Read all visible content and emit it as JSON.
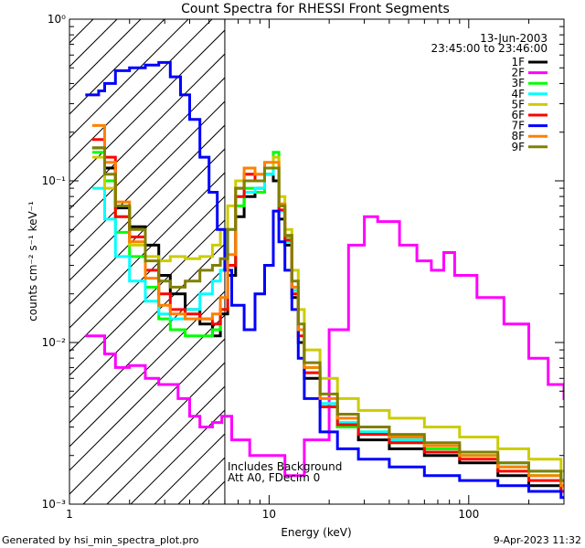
{
  "chart_data": {
    "type": "line",
    "title": "Count Spectra for RHESSI Front Segments",
    "xlabel": "Energy (keV)",
    "ylabel": "counts cm⁻² s⁻¹ keV⁻¹",
    "x_scale": "log",
    "y_scale": "log",
    "xlim": [
      1,
      300
    ],
    "ylim": [
      0.001,
      1
    ],
    "x_ticks": [
      {
        "value": 1,
        "label": "1"
      },
      {
        "value": 10,
        "label": "10"
      },
      {
        "value": 100,
        "label": "100"
      }
    ],
    "y_ticks": [
      {
        "value": 0.001,
        "label": "10⁻³"
      },
      {
        "value": 0.01,
        "label": "10⁻²"
      },
      {
        "value": 0.1,
        "label": "10⁻¹"
      },
      {
        "value": 1,
        "label": "10⁰"
      }
    ],
    "hatched_region": [
      1,
      6
    ],
    "date": "13-Jun-2003",
    "time_range": "23:45:00 to 23:46:00",
    "annotation_lines": [
      "Includes Background",
      "Att A0, FDecim 0"
    ],
    "footer_left": "Generated by hsi_min_spectra_plot.pro",
    "footer_right": "9-Apr-2023 11:32",
    "legend_position": "top-right",
    "series": [
      {
        "name": "1F",
        "color": "#000000",
        "points": [
          [
            1.3,
            0.16
          ],
          [
            1.5,
            0.12
          ],
          [
            1.7,
            0.068
          ],
          [
            2.0,
            0.052
          ],
          [
            2.4,
            0.04
          ],
          [
            2.8,
            0.026
          ],
          [
            3.2,
            0.02
          ],
          [
            3.8,
            0.016
          ],
          [
            4.5,
            0.013
          ],
          [
            5.2,
            0.011
          ],
          [
            5.7,
            0.015
          ],
          [
            6.2,
            0.026
          ],
          [
            6.8,
            0.06
          ],
          [
            7.5,
            0.08
          ],
          [
            8.5,
            0.09
          ],
          [
            9.5,
            0.11
          ],
          [
            10.5,
            0.1
          ],
          [
            11.2,
            0.058
          ],
          [
            12,
            0.04
          ],
          [
            13,
            0.019
          ],
          [
            14,
            0.01
          ],
          [
            15,
            0.006
          ],
          [
            18,
            0.004
          ],
          [
            22,
            0.003
          ],
          [
            28,
            0.0025
          ],
          [
            40,
            0.0022
          ],
          [
            60,
            0.002
          ],
          [
            90,
            0.0018
          ],
          [
            140,
            0.0015
          ],
          [
            200,
            0.0013
          ],
          [
            290,
            0.0012
          ]
        ]
      },
      {
        "name": "2F",
        "color": "#ff00ff",
        "points": [
          [
            1.2,
            0.011
          ],
          [
            1.5,
            0.0085
          ],
          [
            1.7,
            0.007
          ],
          [
            2.0,
            0.0072
          ],
          [
            2.4,
            0.006
          ],
          [
            2.8,
            0.0055
          ],
          [
            3.3,
            0.0055
          ],
          [
            3.5,
            0.0045
          ],
          [
            4.0,
            0.0035
          ],
          [
            4.5,
            0.003
          ],
          [
            5.2,
            0.0032
          ],
          [
            5.8,
            0.0035
          ],
          [
            6.5,
            0.0025
          ],
          [
            8,
            0.002
          ],
          [
            12,
            0.0015
          ],
          [
            15,
            0.0025
          ],
          [
            20,
            0.012
          ],
          [
            25,
            0.04
          ],
          [
            30,
            0.06
          ],
          [
            35,
            0.056
          ],
          [
            45,
            0.04
          ],
          [
            55,
            0.032
          ],
          [
            65,
            0.028
          ],
          [
            75,
            0.036
          ],
          [
            85,
            0.026
          ],
          [
            110,
            0.019
          ],
          [
            150,
            0.013
          ],
          [
            200,
            0.008
          ],
          [
            250,
            0.0055
          ],
          [
            300,
            0.0045
          ]
        ]
      },
      {
        "name": "3F",
        "color": "#00ff00",
        "points": [
          [
            1.3,
            0.15
          ],
          [
            1.5,
            0.1
          ],
          [
            1.7,
            0.048
          ],
          [
            2.0,
            0.034
          ],
          [
            2.4,
            0.022
          ],
          [
            2.8,
            0.014
          ],
          [
            3.2,
            0.012
          ],
          [
            3.8,
            0.011
          ],
          [
            4.5,
            0.011
          ],
          [
            5.2,
            0.012
          ],
          [
            5.7,
            0.016
          ],
          [
            6.2,
            0.03
          ],
          [
            6.8,
            0.07
          ],
          [
            7.5,
            0.09
          ],
          [
            8.5,
            0.085
          ],
          [
            9.5,
            0.11
          ],
          [
            10.5,
            0.15
          ],
          [
            11.2,
            0.07
          ],
          [
            12,
            0.045
          ],
          [
            13,
            0.022
          ],
          [
            14,
            0.012
          ],
          [
            15,
            0.007
          ],
          [
            18,
            0.004
          ],
          [
            22,
            0.003
          ],
          [
            28,
            0.0028
          ],
          [
            40,
            0.0024
          ],
          [
            60,
            0.0022
          ],
          [
            90,
            0.002
          ],
          [
            140,
            0.0017
          ],
          [
            200,
            0.0015
          ],
          [
            290,
            0.0013
          ]
        ]
      },
      {
        "name": "4F",
        "color": "#00ffff",
        "points": [
          [
            1.3,
            0.09
          ],
          [
            1.5,
            0.058
          ],
          [
            1.7,
            0.034
          ],
          [
            2.0,
            0.024
          ],
          [
            2.4,
            0.018
          ],
          [
            2.8,
            0.015
          ],
          [
            3.2,
            0.014
          ],
          [
            3.8,
            0.016
          ],
          [
            4.5,
            0.02
          ],
          [
            5.2,
            0.024
          ],
          [
            5.7,
            0.028
          ],
          [
            6.2,
            0.05
          ],
          [
            6.8,
            0.08
          ],
          [
            7.5,
            0.085
          ],
          [
            8.5,
            0.09
          ],
          [
            9.5,
            0.11
          ],
          [
            10.5,
            0.12
          ],
          [
            11.2,
            0.065
          ],
          [
            12,
            0.042
          ],
          [
            13,
            0.021
          ],
          [
            14,
            0.012
          ],
          [
            15,
            0.0065
          ],
          [
            18,
            0.0042
          ],
          [
            22,
            0.0032
          ],
          [
            28,
            0.0028
          ],
          [
            40,
            0.0025
          ],
          [
            60,
            0.0023
          ],
          [
            90,
            0.002
          ],
          [
            140,
            0.0018
          ],
          [
            200,
            0.0016
          ],
          [
            290,
            0.0014
          ]
        ]
      },
      {
        "name": "5F",
        "color": "#cccc00",
        "points": [
          [
            1.3,
            0.14
          ],
          [
            1.5,
            0.09
          ],
          [
            1.7,
            0.06
          ],
          [
            2.0,
            0.04
          ],
          [
            2.4,
            0.034
          ],
          [
            2.8,
            0.032
          ],
          [
            3.2,
            0.034
          ],
          [
            3.8,
            0.033
          ],
          [
            4.5,
            0.034
          ],
          [
            5.2,
            0.04
          ],
          [
            5.7,
            0.05
          ],
          [
            6.2,
            0.07
          ],
          [
            6.8,
            0.1
          ],
          [
            7.5,
            0.11
          ],
          [
            8.5,
            0.11
          ],
          [
            9.5,
            0.12
          ],
          [
            10.5,
            0.14
          ],
          [
            11.2,
            0.08
          ],
          [
            12,
            0.05
          ],
          [
            13,
            0.028
          ],
          [
            14,
            0.016
          ],
          [
            15,
            0.009
          ],
          [
            18,
            0.006
          ],
          [
            22,
            0.0045
          ],
          [
            28,
            0.0038
          ],
          [
            40,
            0.0034
          ],
          [
            60,
            0.003
          ],
          [
            90,
            0.0026
          ],
          [
            140,
            0.0022
          ],
          [
            200,
            0.0019
          ],
          [
            290,
            0.0016
          ]
        ]
      },
      {
        "name": "6F",
        "color": "#ff0000",
        "points": [
          [
            1.3,
            0.18
          ],
          [
            1.5,
            0.14
          ],
          [
            1.7,
            0.06
          ],
          [
            2.0,
            0.045
          ],
          [
            2.4,
            0.028
          ],
          [
            2.8,
            0.02
          ],
          [
            3.2,
            0.016
          ],
          [
            3.8,
            0.015
          ],
          [
            4.5,
            0.014
          ],
          [
            5.2,
            0.013
          ],
          [
            5.7,
            0.016
          ],
          [
            6.2,
            0.03
          ],
          [
            6.8,
            0.08
          ],
          [
            7.5,
            0.11
          ],
          [
            8.5,
            0.1
          ],
          [
            9.5,
            0.12
          ],
          [
            10.5,
            0.12
          ],
          [
            11.2,
            0.066
          ],
          [
            12,
            0.043
          ],
          [
            13,
            0.02
          ],
          [
            14,
            0.011
          ],
          [
            15,
            0.0065
          ],
          [
            18,
            0.004
          ],
          [
            22,
            0.0031
          ],
          [
            28,
            0.0027
          ],
          [
            40,
            0.0024
          ],
          [
            60,
            0.0021
          ],
          [
            90,
            0.0019
          ],
          [
            140,
            0.0016
          ],
          [
            200,
            0.0014
          ],
          [
            290,
            0.0012
          ]
        ]
      },
      {
        "name": "7F",
        "color": "#0000ff",
        "points": [
          [
            1.2,
            0.34
          ],
          [
            1.4,
            0.36
          ],
          [
            1.5,
            0.4
          ],
          [
            1.7,
            0.48
          ],
          [
            2.0,
            0.5
          ],
          [
            2.4,
            0.52
          ],
          [
            2.8,
            0.54
          ],
          [
            3.2,
            0.44
          ],
          [
            3.6,
            0.34
          ],
          [
            4.0,
            0.24
          ],
          [
            4.5,
            0.14
          ],
          [
            5.0,
            0.085
          ],
          [
            5.5,
            0.05
          ],
          [
            6.0,
            0.028
          ],
          [
            6.5,
            0.017
          ],
          [
            7.5,
            0.012
          ],
          [
            8.5,
            0.02
          ],
          [
            9.5,
            0.03
          ],
          [
            10.5,
            0.065
          ],
          [
            11.2,
            0.042
          ],
          [
            12,
            0.028
          ],
          [
            13,
            0.016
          ],
          [
            14,
            0.008
          ],
          [
            15,
            0.0045
          ],
          [
            18,
            0.0028
          ],
          [
            22,
            0.0022
          ],
          [
            28,
            0.0019
          ],
          [
            40,
            0.0017
          ],
          [
            60,
            0.0015
          ],
          [
            90,
            0.0014
          ],
          [
            140,
            0.0013
          ],
          [
            200,
            0.0012
          ],
          [
            290,
            0.0011
          ]
        ]
      },
      {
        "name": "8F",
        "color": "#ff8000",
        "points": [
          [
            1.3,
            0.22
          ],
          [
            1.5,
            0.13
          ],
          [
            1.7,
            0.074
          ],
          [
            2.0,
            0.042
          ],
          [
            2.4,
            0.025
          ],
          [
            2.8,
            0.017
          ],
          [
            3.2,
            0.015
          ],
          [
            3.8,
            0.014
          ],
          [
            4.5,
            0.014
          ],
          [
            5.2,
            0.015
          ],
          [
            5.7,
            0.019
          ],
          [
            6.2,
            0.035
          ],
          [
            6.8,
            0.09
          ],
          [
            7.5,
            0.12
          ],
          [
            8.5,
            0.11
          ],
          [
            9.5,
            0.13
          ],
          [
            10.5,
            0.13
          ],
          [
            11.2,
            0.072
          ],
          [
            12,
            0.046
          ],
          [
            13,
            0.022
          ],
          [
            14,
            0.012
          ],
          [
            15,
            0.007
          ],
          [
            18,
            0.0045
          ],
          [
            22,
            0.0034
          ],
          [
            28,
            0.003
          ],
          [
            40,
            0.0026
          ],
          [
            60,
            0.0023
          ],
          [
            90,
            0.002
          ],
          [
            140,
            0.0017
          ],
          [
            200,
            0.0015
          ],
          [
            290,
            0.0013
          ]
        ]
      },
      {
        "name": "9F",
        "color": "#808000",
        "points": [
          [
            1.3,
            0.16
          ],
          [
            1.5,
            0.11
          ],
          [
            1.7,
            0.07
          ],
          [
            2.0,
            0.05
          ],
          [
            2.4,
            0.032
          ],
          [
            2.8,
            0.024
          ],
          [
            3.2,
            0.022
          ],
          [
            3.8,
            0.024
          ],
          [
            4.5,
            0.028
          ],
          [
            5.2,
            0.03
          ],
          [
            5.7,
            0.033
          ],
          [
            6.2,
            0.05
          ],
          [
            6.8,
            0.09
          ],
          [
            7.5,
            0.1
          ],
          [
            8.5,
            0.1
          ],
          [
            9.5,
            0.12
          ],
          [
            10.5,
            0.12
          ],
          [
            11.2,
            0.07
          ],
          [
            12,
            0.046
          ],
          [
            13,
            0.024
          ],
          [
            14,
            0.013
          ],
          [
            15,
            0.0075
          ],
          [
            18,
            0.0048
          ],
          [
            22,
            0.0036
          ],
          [
            28,
            0.003
          ],
          [
            40,
            0.0027
          ],
          [
            60,
            0.0024
          ],
          [
            90,
            0.0021
          ],
          [
            140,
            0.0018
          ],
          [
            200,
            0.0016
          ],
          [
            290,
            0.0014
          ]
        ]
      }
    ]
  }
}
